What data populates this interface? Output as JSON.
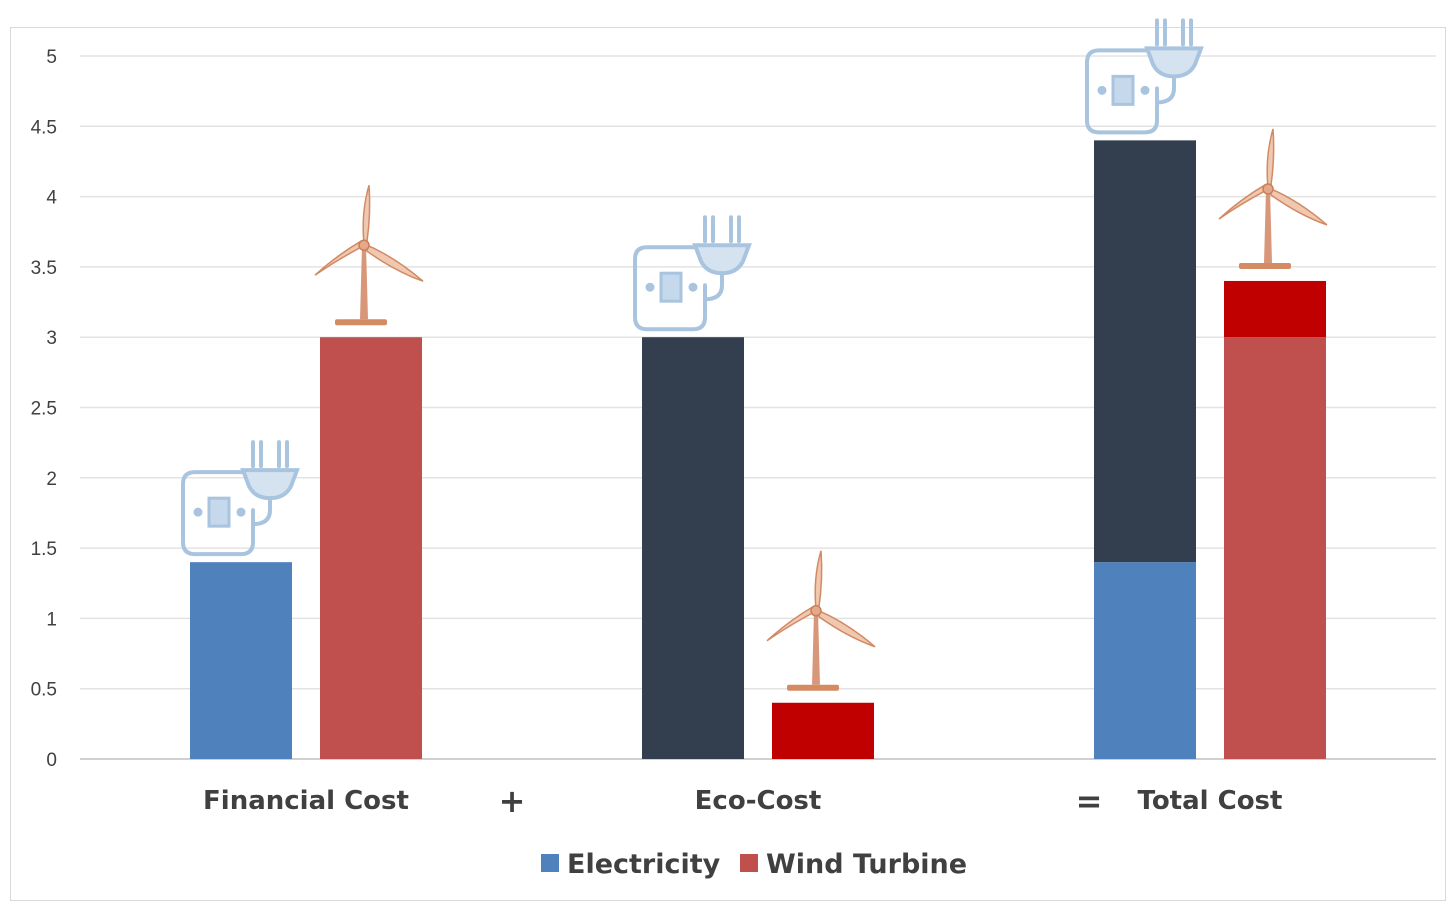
{
  "chart_data": {
    "type": "bar",
    "title": "",
    "xlabel": "",
    "ylabel": "",
    "ylim": [
      0,
      5
    ],
    "yticks": [
      "0",
      "0.5",
      "1",
      "1.5",
      "2",
      "2.5",
      "3",
      "3.5",
      "4",
      "4.5",
      "5"
    ],
    "grid": true,
    "legend_position": "bottom",
    "categories": [
      "Financial Cost",
      "Eco-Cost",
      "Total Cost"
    ],
    "operators": [
      "+",
      "="
    ],
    "series": [
      {
        "name": "Electricity",
        "color": "#4f81bd",
        "values": [
          1.4,
          3.0,
          4.4
        ],
        "segments": [
          [
            {
              "value": 1.4,
              "color": "#4f81bd"
            }
          ],
          [
            {
              "value": 3.0,
              "color": "#333f4f"
            }
          ],
          [
            {
              "value": 1.4,
              "color": "#4f81bd"
            },
            {
              "value": 3.0,
              "color": "#333f4f"
            }
          ]
        ]
      },
      {
        "name": "Wind Turbine",
        "color": "#c0504d",
        "values": [
          3.0,
          0.4,
          3.4
        ],
        "segments": [
          [
            {
              "value": 3.0,
              "color": "#c0504d"
            }
          ],
          [
            {
              "value": 0.4,
              "color": "#c00000"
            }
          ],
          [
            {
              "value": 3.0,
              "color": "#c0504d"
            },
            {
              "value": 0.4,
              "color": "#c00000"
            }
          ]
        ]
      }
    ],
    "icons": {
      "electricity": "plug-socket-icon",
      "wind_turbine": "wind-turbine-icon"
    }
  }
}
